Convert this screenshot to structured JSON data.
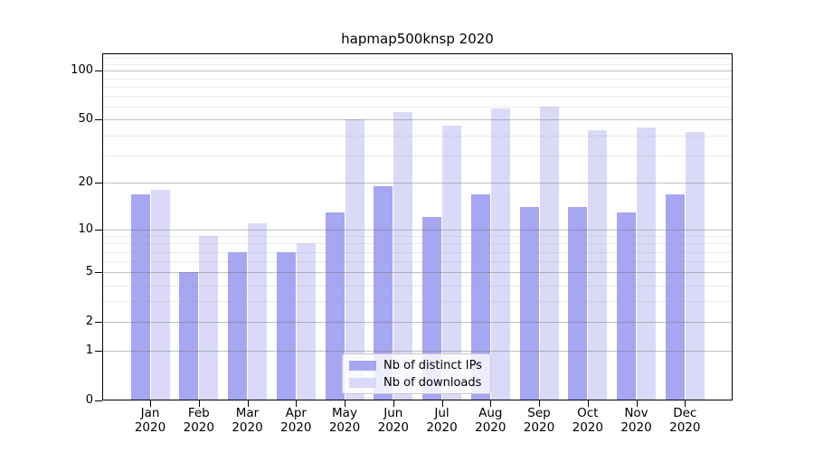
{
  "chart_data": {
    "type": "bar",
    "title": "hapmap500knsp 2020",
    "categories": [
      "Jan",
      "Feb",
      "Mar",
      "Apr",
      "May",
      "Jun",
      "Jul",
      "Aug",
      "Sep",
      "Oct",
      "Nov",
      "Dec"
    ],
    "year": "2020",
    "series": [
      {
        "name": "Nb of distinct IPs",
        "color": "#a6a6f2",
        "values": [
          17,
          5,
          7,
          7,
          13,
          19,
          12,
          17,
          14,
          14,
          13,
          17
        ]
      },
      {
        "name": "Nb of downloads",
        "color": "#dadaf8",
        "values": [
          18,
          9,
          11,
          8,
          50,
          56,
          46,
          59,
          60,
          43,
          45,
          42
        ]
      }
    ],
    "xlabel": "",
    "ylabel": "",
    "yscale": "log1p",
    "ylim": [
      0,
      128
    ],
    "yticks": [
      0,
      1,
      2,
      5,
      10,
      20,
      50,
      100
    ],
    "minor_gridlines": [
      3,
      4,
      6,
      7,
      8,
      9,
      30,
      40,
      60,
      70,
      80,
      90,
      110,
      120
    ],
    "grid": true,
    "legend_position": "lower-center"
  }
}
